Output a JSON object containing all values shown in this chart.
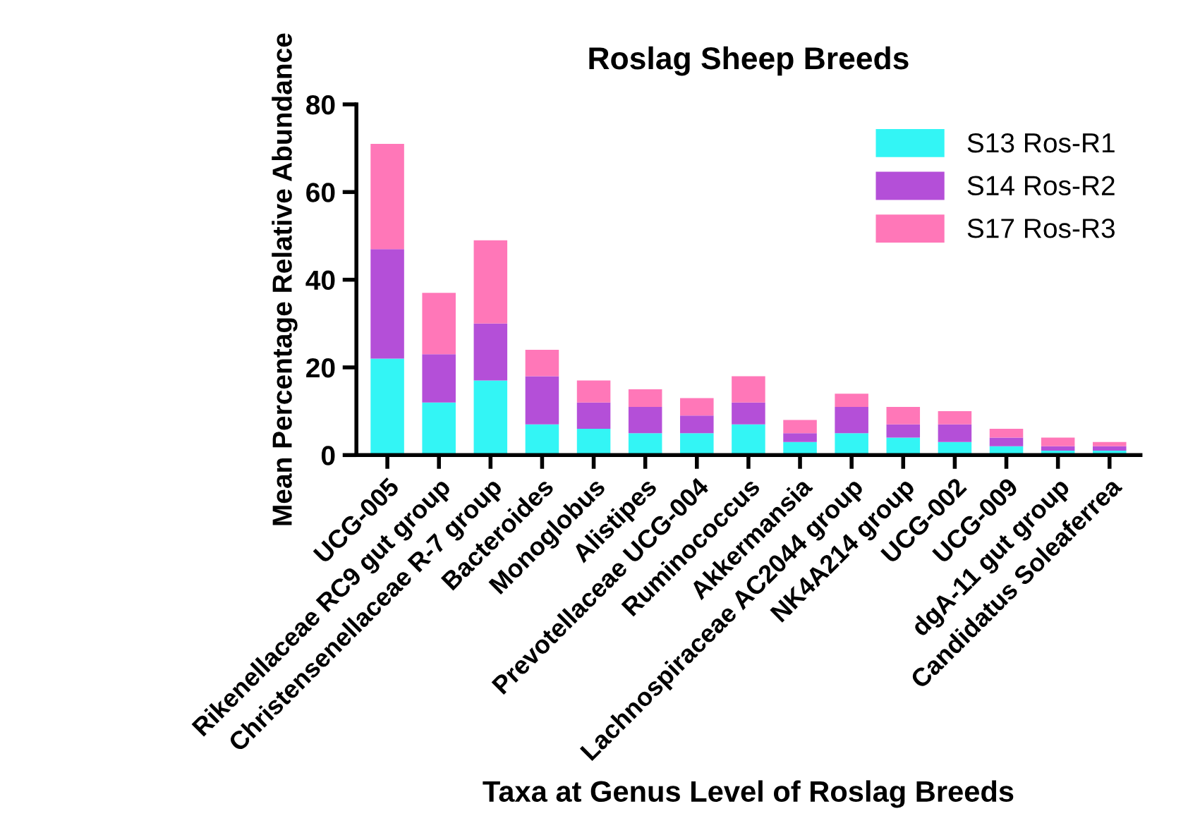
{
  "chart_data": {
    "type": "bar",
    "title": "Roslag Sheep Breeds",
    "xlabel": "Taxa at Genus Level of Roslag Breeds",
    "ylabel": "Mean Percentage Relative Abundance",
    "categories": [
      "UCG-005",
      "Rikenellaceae RC9 gut group",
      "Christensenellaceae R-7 group",
      "Bacteroides",
      "Monoglobus",
      "Alistipes",
      "Prevotellaceae UCG-004",
      "Ruminococcus",
      "Akkermansia",
      "Lachnospiraceae AC2044 group",
      "NK4A214 group",
      "UCG-002",
      "UCG-009",
      "dgA-11 gut group",
      "Candidatus Soleaferrea"
    ],
    "stacked": true,
    "series": [
      {
        "name": "S13 Ros-R1",
        "color": "#33f5f5",
        "values": [
          22,
          12,
          17,
          7,
          6,
          5,
          5,
          7,
          3,
          5,
          4,
          3,
          2,
          1,
          1
        ]
      },
      {
        "name": "S14 Ros-R2",
        "color": "#b44fd8",
        "values": [
          25,
          11,
          13,
          11,
          6,
          6,
          4,
          5,
          2,
          6,
          3,
          4,
          2,
          1,
          1
        ]
      },
      {
        "name": "S17 Ros-R3",
        "color": "#ff77b8",
        "values": [
          24,
          14,
          19,
          6,
          5,
          4,
          4,
          6,
          3,
          3,
          4,
          3,
          2,
          2,
          1
        ]
      }
    ],
    "ylim": [
      0,
      80
    ],
    "yticks": [
      0,
      20,
      40,
      60,
      80
    ],
    "grid": false,
    "legend": "top right"
  }
}
